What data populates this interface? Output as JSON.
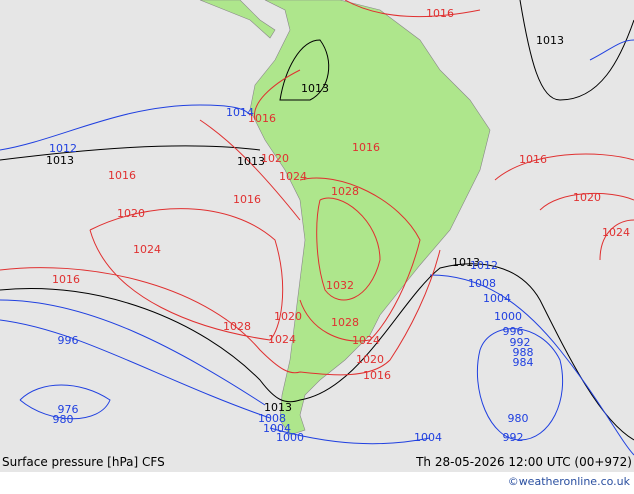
{
  "map": {
    "isobar_labels": [
      "1016",
      "1013",
      "1013",
      "1016",
      "1012",
      "1013",
      "1014",
      "1013",
      "1020",
      "1016",
      "1016",
      "1024",
      "1016",
      "1016",
      "1028",
      "1020",
      "1020",
      "1024",
      "1024",
      "1013",
      "1012",
      "1016",
      "1008",
      "1004",
      "1032",
      "1020",
      "1000",
      "1028",
      "1028",
      "996",
      "1024",
      "1024",
      "992",
      "996",
      "988",
      "984",
      "1020",
      "1016",
      "1013",
      "976",
      "980",
      "1008",
      "980",
      "1004",
      "1004",
      "1000",
      "992"
    ],
    "footer": {
      "title": "Surface pressure [hPa] CFS",
      "valid": "Th 28-05-2026 12:00 UTC (00+972)",
      "credit": "©weatheronline.co.uk"
    }
  }
}
